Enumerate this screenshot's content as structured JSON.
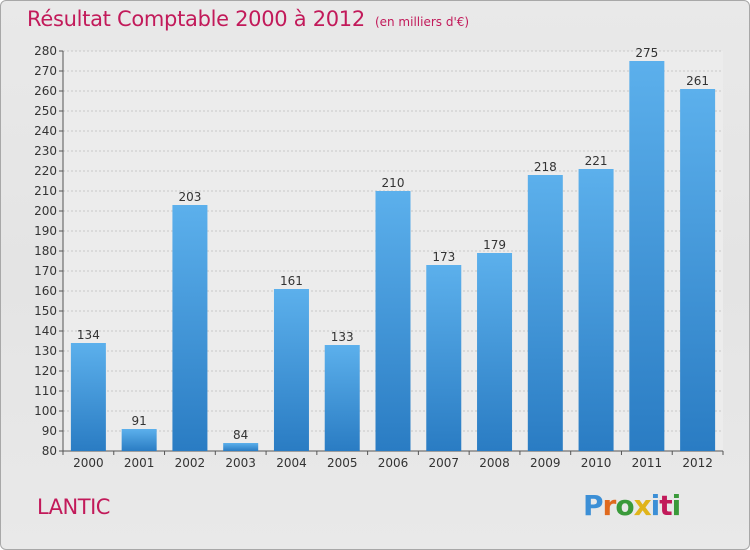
{
  "header": {
    "title": "Résultat Comptable 2000 à 2012",
    "subtitle": "(en milliers d'€)"
  },
  "footer": {
    "commune": "LANTIC",
    "logo_letters": [
      "P",
      "r",
      "o",
      "x",
      "i",
      "t",
      "i"
    ],
    "logo_colors": [
      "#3c8fd6",
      "#e06a1e",
      "#3a9a3a",
      "#e0b41a",
      "#3c8fd6",
      "#c21a5a",
      "#3a9a3a"
    ]
  },
  "colors": {
    "bar_light": "#5cb0ec",
    "bar_dark": "#2a7cc3",
    "accent": "#c21a5a"
  },
  "chart_data": {
    "type": "bar",
    "title": "Résultat Comptable 2000 à 2012",
    "subtitle": "(en milliers d'€)",
    "categories": [
      "2000",
      "2001",
      "2002",
      "2003",
      "2004",
      "2005",
      "2006",
      "2007",
      "2008",
      "2009",
      "2010",
      "2011",
      "2012"
    ],
    "values": [
      134,
      91,
      203,
      84,
      161,
      133,
      210,
      173,
      179,
      218,
      221,
      275,
      261
    ],
    "ylim": [
      80,
      280
    ],
    "ytick_step": 10,
    "grid": true,
    "legend": "none"
  }
}
